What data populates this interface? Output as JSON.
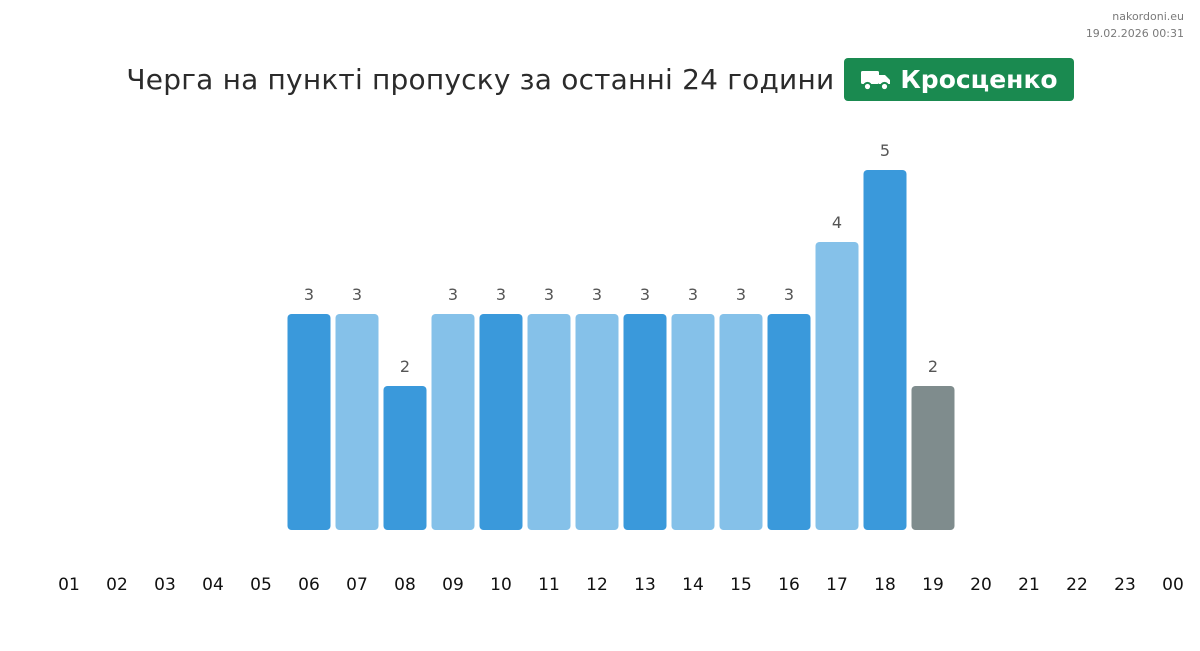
{
  "meta": {
    "site": "nakordoni.eu",
    "timestamp": "19.02.2026 00:31"
  },
  "header": {
    "title": "Черга на пункті пропуску за останні 24 години",
    "checkpoint_name": "Кросценко",
    "checkpoint_icon": "truck-icon"
  },
  "colors": {
    "badge": "#1a8a50",
    "bar_dark": "#3a99db",
    "bar_light": "#85c1e9",
    "bar_current": "#7f8c8d",
    "label": "#555555",
    "axis_text": "#111111"
  },
  "chart_data": {
    "type": "bar",
    "categories": [
      "01",
      "02",
      "03",
      "04",
      "05",
      "06",
      "07",
      "08",
      "09",
      "10",
      "11",
      "12",
      "13",
      "14",
      "15",
      "16",
      "17",
      "18",
      "19",
      "20",
      "21",
      "22",
      "23",
      "00"
    ],
    "values": [
      null,
      null,
      null,
      null,
      null,
      3,
      3,
      2,
      3,
      3,
      3,
      3,
      3,
      3,
      3,
      3,
      4,
      5,
      2,
      null,
      null,
      null,
      null,
      null
    ],
    "shade": [
      null,
      null,
      null,
      null,
      null,
      "dark",
      "light",
      "dark",
      "light",
      "dark",
      "light",
      "light",
      "dark",
      "light",
      "light",
      "dark",
      "light",
      "dark",
      "current",
      null,
      null,
      null,
      null,
      null
    ],
    "ylim": [
      0,
      5
    ],
    "grid": false,
    "title": "",
    "xlabel": "",
    "ylabel": ""
  }
}
